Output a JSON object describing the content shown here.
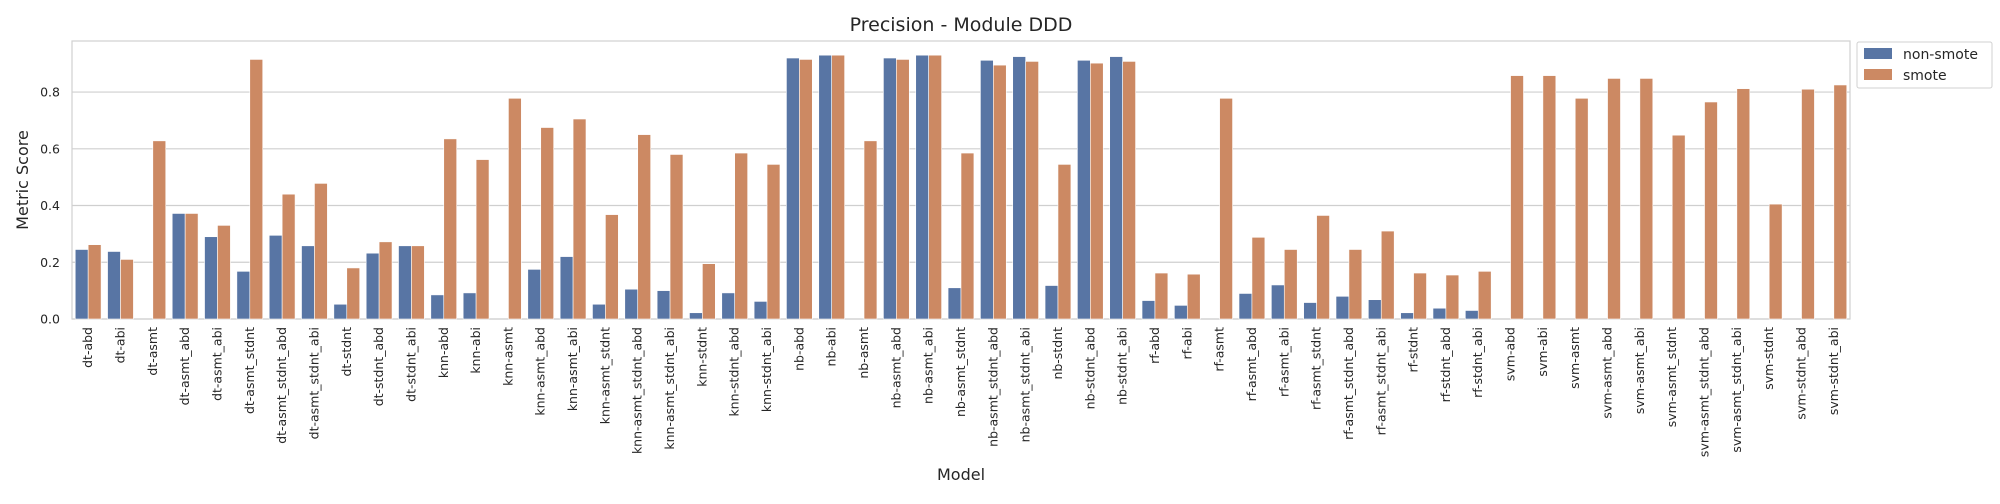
{
  "chart_data": {
    "type": "bar",
    "title": "Precision - Module DDD",
    "xlabel": "Model",
    "ylabel": "Metric Score",
    "ylim": [
      0,
      0.98
    ],
    "yticks": [
      0.0,
      0.2,
      0.4,
      0.6,
      0.8
    ],
    "ytick_labels": [
      "0.0",
      "0.2",
      "0.4",
      "0.6",
      "0.8"
    ],
    "grid": true,
    "legend_position": "outside-top-right",
    "categories": [
      "dt-abd",
      "dt-abi",
      "dt-asmt",
      "dt-asmt_abd",
      "dt-asmt_abi",
      "dt-asmt_stdnt",
      "dt-asmt_stdnt_abd",
      "dt-asmt_stdnt_abi",
      "dt-stdnt",
      "dt-stdnt_abd",
      "dt-stdnt_abi",
      "knn-abd",
      "knn-abi",
      "knn-asmt",
      "knn-asmt_abd",
      "knn-asmt_abi",
      "knn-asmt_stdnt",
      "knn-asmt_stdnt_abd",
      "knn-asmt_stdnt_abi",
      "knn-stdnt",
      "knn-stdnt_abd",
      "knn-stdnt_abi",
      "nb-abd",
      "nb-abi",
      "nb-asmt",
      "nb-asmt_abd",
      "nb-asmt_abi",
      "nb-asmt_stdnt",
      "nb-asmt_stdnt_abd",
      "nb-asmt_stdnt_abi",
      "nb-stdnt",
      "nb-stdnt_abd",
      "nb-stdnt_abi",
      "rf-abd",
      "rf-abi",
      "rf-asmt",
      "rf-asmt_abd",
      "rf-asmt_abi",
      "rf-asmt_stdnt",
      "rf-asmt_stdnt_abd",
      "rf-asmt_stdnt_abi",
      "rf-stdnt",
      "rf-stdnt_abd",
      "rf-stdnt_abi",
      "svm-abd",
      "svm-abi",
      "svm-asmt",
      "svm-asmt_abd",
      "svm-asmt_abi",
      "svm-asmt_stdnt",
      "svm-asmt_stdnt_abd",
      "svm-asmt_stdnt_abi",
      "svm-stdnt",
      "svm-stdnt_abd",
      "svm-stdnt_abi"
    ],
    "series": [
      {
        "name": "non-smote",
        "color": "#5875a4",
        "values": [
          0.245,
          0.238,
          0.0,
          0.372,
          0.29,
          0.168,
          0.295,
          0.258,
          0.052,
          0.232,
          0.258,
          0.085,
          0.092,
          0.0,
          0.175,
          0.22,
          0.052,
          0.105,
          0.1,
          0.022,
          0.092,
          0.062,
          0.92,
          0.93,
          0.0,
          0.92,
          0.93,
          0.11,
          0.912,
          0.925,
          0.118,
          0.912,
          0.925,
          0.065,
          0.048,
          0.0,
          0.09,
          0.12,
          0.058,
          0.08,
          0.068,
          0.022,
          0.038,
          0.03,
          0.0,
          0.0,
          0.0,
          0.0,
          0.0,
          0.0,
          0.0,
          0.0,
          0.0,
          0.0,
          0.0
        ]
      },
      {
        "name": "smote",
        "color": "#cc8963",
        "values": [
          0.262,
          0.21,
          0.628,
          0.372,
          0.33,
          0.915,
          0.44,
          0.478,
          0.18,
          0.272,
          0.258,
          0.635,
          0.562,
          0.778,
          0.675,
          0.705,
          0.368,
          0.65,
          0.58,
          0.195,
          0.585,
          0.545,
          0.915,
          0.93,
          0.628,
          0.915,
          0.93,
          0.585,
          0.895,
          0.908,
          0.545,
          0.902,
          0.908,
          0.162,
          0.158,
          0.778,
          0.288,
          0.245,
          0.365,
          0.245,
          0.31,
          0.162,
          0.155,
          0.168,
          0.858,
          0.858,
          0.778,
          0.848,
          0.848,
          0.648,
          0.765,
          0.812,
          0.405,
          0.81,
          0.825
        ]
      }
    ]
  }
}
